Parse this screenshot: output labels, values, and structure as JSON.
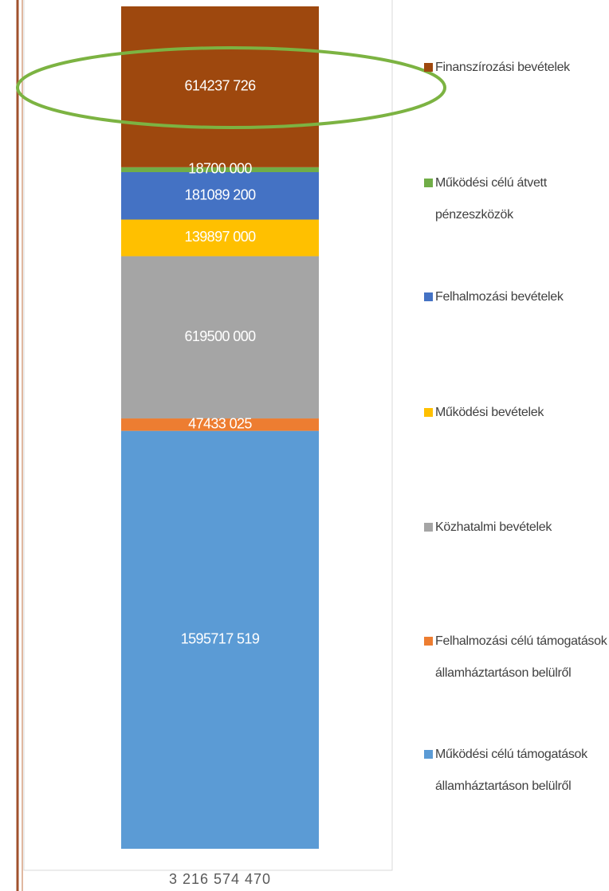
{
  "chart_data": {
    "type": "bar",
    "stacked": true,
    "categories": [
      "3 216 574 470"
    ],
    "series": [
      {
        "name": "Működési célú támogatások államháztartáson belülről",
        "color": "#5b9bd5",
        "values": [
          1595717519
        ],
        "value_labels": [
          "1595717 519"
        ]
      },
      {
        "name": "Felhalmozási célú támogatások államháztartáson belülről",
        "color": "#ed7d31",
        "values": [
          47433025
        ],
        "value_labels": [
          "47433 025"
        ]
      },
      {
        "name": "Közhatalmi bevételek",
        "color": "#a5a5a5",
        "values": [
          619500000
        ],
        "value_labels": [
          "619500 000"
        ]
      },
      {
        "name": "Működési bevételek",
        "color": "#ffc000",
        "values": [
          139897000
        ],
        "value_labels": [
          "139897 000"
        ]
      },
      {
        "name": "Felhalmozási bevételek",
        "color": "#4472c4",
        "values": [
          181089200
        ],
        "value_labels": [
          "181089 200"
        ]
      },
      {
        "name": "Működési célú átvett pénzeszközök",
        "color": "#70ad47",
        "values": [
          18700000
        ],
        "value_labels": [
          "18700 000"
        ]
      },
      {
        "name": "Finanszírozási bevételek",
        "color": "#9e480e",
        "values": [
          614237726
        ],
        "value_labels": [
          "614237 726"
        ]
      }
    ]
  }
}
